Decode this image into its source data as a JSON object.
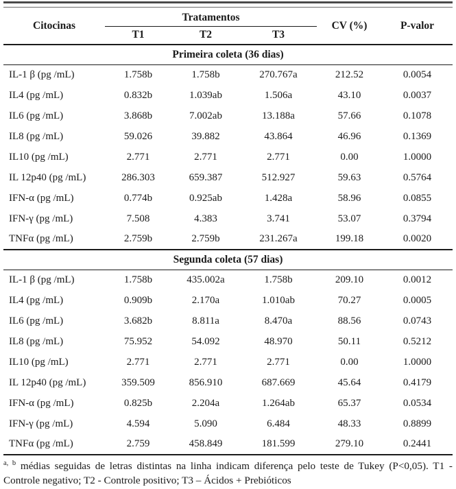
{
  "table": {
    "header": {
      "citocinas": "Citocinas",
      "tratamentos": "Tratamentos",
      "t1": "T1",
      "t2": "T2",
      "t3": "T3",
      "cv": "CV (%)",
      "pvalor": "P-valor"
    },
    "sections": [
      {
        "title": "Primeira coleta (36 dias)",
        "rows": [
          {
            "citocina": "IL-1 β (pg /mL)",
            "t1": "1.758b",
            "t2": "1.758b",
            "t3": "270.767a",
            "cv": "212.52",
            "p": "0.0054"
          },
          {
            "citocina": "IL4 (pg /mL)",
            "t1": "0.832b",
            "t2": "1.039ab",
            "t3": "1.506a",
            "cv": "43.10",
            "p": "0.0037"
          },
          {
            "citocina": "IL6 (pg /mL)",
            "t1": "3.868b",
            "t2": "7.002ab",
            "t3": "13.188a",
            "cv": "57.66",
            "p": "0.1078"
          },
          {
            "citocina": "IL8 (pg /mL)",
            "t1": "59.026",
            "t2": "39.882",
            "t3": "43.864",
            "cv": "46.96",
            "p": "0.1369"
          },
          {
            "citocina": "IL10 (pg /mL)",
            "t1": "2.771",
            "t2": "2.771",
            "t3": "2.771",
            "cv": "0.00",
            "p": "1.0000"
          },
          {
            "citocina": "IL 12p40 (pg /mL)",
            "t1": "286.303",
            "t2": "659.387",
            "t3": "512.927",
            "cv": "59.63",
            "p": "0.5764"
          },
          {
            "citocina": "IFN-α (pg /mL)",
            "t1": "0.774b",
            "t2": "0.925ab",
            "t3": "1.428a",
            "cv": "58.96",
            "p": "0.0855"
          },
          {
            "citocina": "IFN-γ (pg /mL)",
            "t1": "7.508",
            "t2": "4.383",
            "t3": "3.741",
            "cv": "53.07",
            "p": "0.3794"
          },
          {
            "citocina": "TNFα (pg /mL)",
            "t1": "2.759b",
            "t2": "2.759b",
            "t3": "231.267a",
            "cv": "199.18",
            "p": "0.0020"
          }
        ]
      },
      {
        "title": "Segunda coleta (57 dias)",
        "rows": [
          {
            "citocina": "IL-1 β (pg /mL)",
            "t1": "1.758b",
            "t2": "435.002a",
            "t3": "1.758b",
            "cv": "209.10",
            "p": "0.0012"
          },
          {
            "citocina": "IL4 (pg /mL)",
            "t1": "0.909b",
            "t2": "2.170a",
            "t3": "1.010ab",
            "cv": "70.27",
            "p": "0.0005"
          },
          {
            "citocina": "IL6 (pg /mL)",
            "t1": "3.682b",
            "t2": "8.811a",
            "t3": "8.470a",
            "cv": "88.56",
            "p": "0.0743"
          },
          {
            "citocina": "IL8 (pg /mL)",
            "t1": "75.952",
            "t2": "54.092",
            "t3": "48.970",
            "cv": "50.11",
            "p": "0.5212"
          },
          {
            "citocina": "IL10 (pg /mL)",
            "t1": "2.771",
            "t2": "2.771",
            "t3": "2.771",
            "cv": "0.00",
            "p": "1.0000"
          },
          {
            "citocina": "IL 12p40 (pg /mL)",
            "t1": "359.509",
            "t2": "856.910",
            "t3": "687.669",
            "cv": "45.64",
            "p": "0.4179"
          },
          {
            "citocina": "IFN-α (pg /mL)",
            "t1": "0.825b",
            "t2": "2.204a",
            "t3": "1.264ab",
            "cv": "65.37",
            "p": "0.0534"
          },
          {
            "citocina": "IFN-γ (pg /mL)",
            "t1": "4.594",
            "t2": "5.090",
            "t3": "6.484",
            "cv": "48.33",
            "p": "0.8899"
          },
          {
            "citocina": "TNFα (pg /mL)",
            "t1": "2.759",
            "t2": "458.849",
            "t3": "181.599",
            "cv": "279.10",
            "p": "0.2441"
          }
        ]
      }
    ]
  },
  "footnote": {
    "superscript": "a, b",
    "text": " médias seguidas de letras distintas na linha indicam diferença pelo teste de Tukey (P<0,05). T1 - Controle negativo; T2 - Controle positivo; T3 – Ácidos + Prebióticos"
  },
  "colors": {
    "text": "#1a1a1a",
    "rule": "#1a1a1a",
    "top_bar": "#4a4a4a",
    "background": "#ffffff"
  }
}
